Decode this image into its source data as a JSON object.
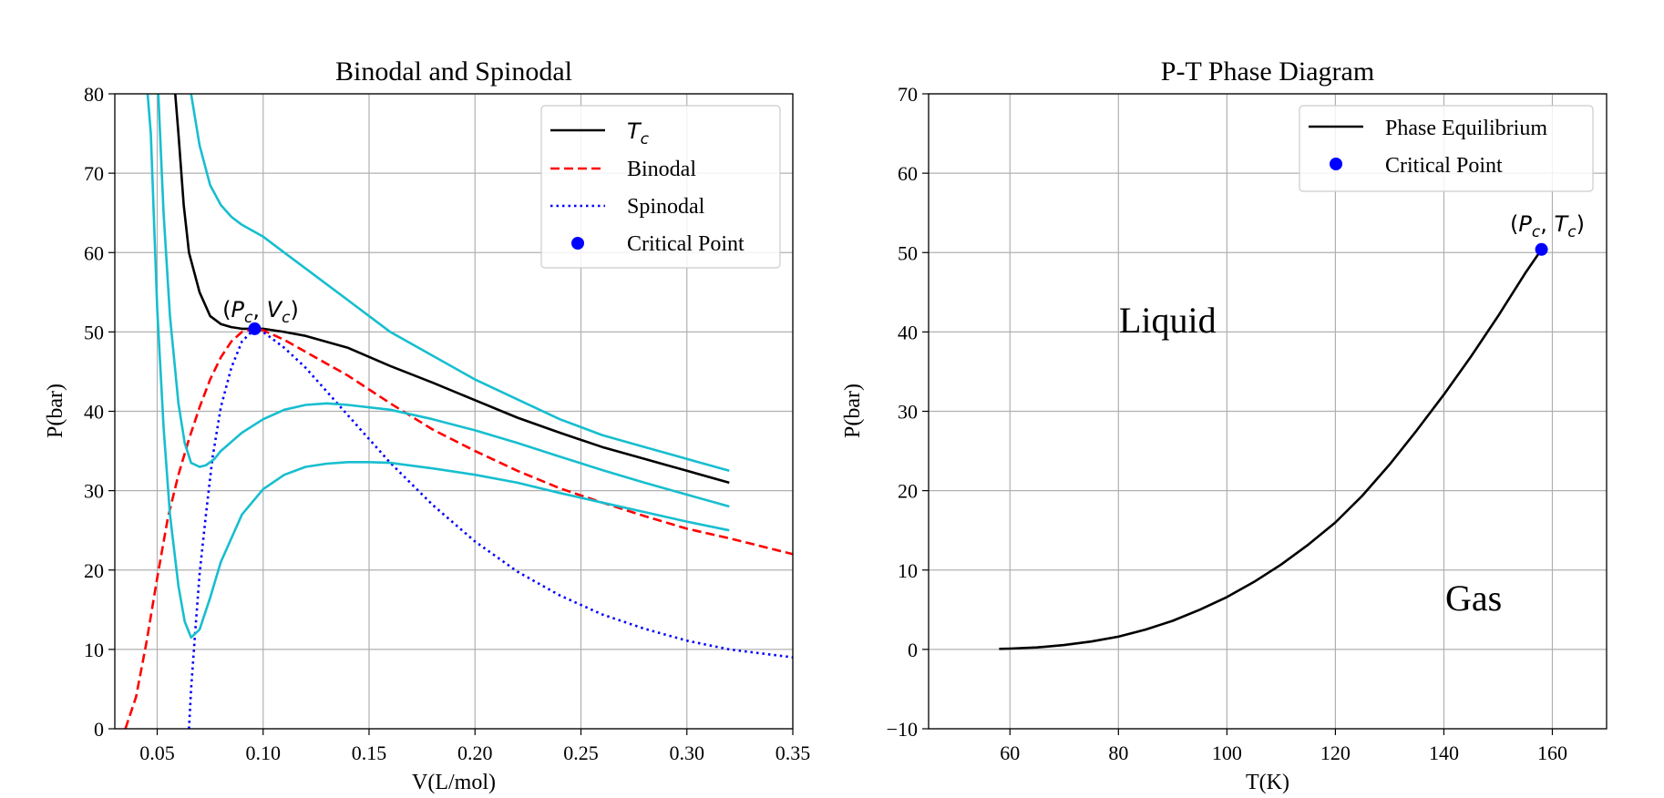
{
  "colors": {
    "tc": "#000000",
    "binodal": "#ff0000",
    "spinodal": "#0000ff",
    "isotherm": "#17becf",
    "critical": "#0000ff",
    "grid": "#b0b0b0"
  },
  "chart_data": [
    {
      "type": "line",
      "title": "Binodal and Spinodal",
      "xlabel": "V(L/mol)",
      "ylabel": "P(bar)",
      "xlim": [
        0.03,
        0.35
      ],
      "ylim": [
        0,
        80
      ],
      "xticks": [
        0.05,
        0.1,
        0.15,
        0.2,
        0.25,
        0.3,
        0.35
      ],
      "xtick_labels": [
        "0.05",
        "0.10",
        "0.15",
        "0.20",
        "0.25",
        "0.30",
        "0.35"
      ],
      "yticks": [
        0,
        10,
        20,
        30,
        40,
        50,
        60,
        70,
        80
      ],
      "ytick_labels": [
        "0",
        "10",
        "20",
        "30",
        "40",
        "50",
        "60",
        "70",
        "80"
      ],
      "grid": true,
      "legend_position": "upper right",
      "legend": [
        "Tc",
        "Binodal",
        "Spinodal",
        "Critical Point"
      ],
      "legend_math_subscript": "c",
      "series": [
        {
          "name": "Tc",
          "style": "solid",
          "color_key": "tc",
          "x": [
            0.0585,
            0.06,
            0.0625,
            0.065,
            0.07,
            0.075,
            0.08,
            0.085,
            0.09,
            0.095,
            0.1,
            0.11,
            0.12,
            0.14,
            0.16,
            0.18,
            0.2,
            0.22,
            0.24,
            0.26,
            0.28,
            0.3,
            0.32
          ],
          "y": [
            80,
            75,
            66,
            60,
            55,
            52,
            51,
            50.6,
            50.4,
            50.4,
            50.4,
            50,
            49.5,
            48,
            45.7,
            43.6,
            41.4,
            39.2,
            37.3,
            35.5,
            34,
            32.5,
            31
          ]
        },
        {
          "name": "Binodal",
          "style": "dashed",
          "color_key": "binodal",
          "x": [
            0.035,
            0.04,
            0.045,
            0.05,
            0.055,
            0.06,
            0.065,
            0.07,
            0.075,
            0.08,
            0.085,
            0.09,
            0.096,
            0.1,
            0.11,
            0.12,
            0.14,
            0.16,
            0.18,
            0.2,
            0.22,
            0.24,
            0.26,
            0.28,
            0.3,
            0.32,
            0.35
          ],
          "y": [
            0,
            4,
            11,
            19,
            26.5,
            32,
            36.5,
            40.5,
            44,
            46.8,
            48.8,
            50,
            50.4,
            50.2,
            49,
            47.5,
            44.5,
            41,
            37.7,
            35,
            32.5,
            30.3,
            28.5,
            26.8,
            25.2,
            24,
            22
          ]
        },
        {
          "name": "Spinodal",
          "style": "dotted",
          "color_key": "spinodal",
          "x": [
            0.065,
            0.066,
            0.068,
            0.07,
            0.073,
            0.076,
            0.08,
            0.085,
            0.09,
            0.096,
            0.1,
            0.11,
            0.12,
            0.14,
            0.16,
            0.18,
            0.2,
            0.22,
            0.24,
            0.26,
            0.28,
            0.3,
            0.32,
            0.35
          ],
          "y": [
            0,
            5,
            12.5,
            19.5,
            27,
            34,
            40.5,
            45.5,
            48.8,
            50.4,
            50,
            48,
            45.5,
            39.5,
            33.5,
            28.2,
            23.6,
            19.8,
            16.8,
            14.4,
            12.6,
            11.1,
            10,
            9
          ]
        },
        {
          "name": "",
          "style": "solid",
          "color_key": "isotherm",
          "x": [
            0.066,
            0.07,
            0.075,
            0.08,
            0.085,
            0.09,
            0.1,
            0.11,
            0.12,
            0.13,
            0.14,
            0.15,
            0.16,
            0.18,
            0.2,
            0.22,
            0.24,
            0.26,
            0.28,
            0.3,
            0.32
          ],
          "y": [
            80,
            73.5,
            68.5,
            66,
            64.5,
            63.5,
            62,
            60,
            58,
            56,
            54,
            52,
            50,
            47,
            44,
            41.5,
            39,
            37,
            35.5,
            34,
            32.5
          ]
        },
        {
          "name": "",
          "style": "solid",
          "color_key": "isotherm",
          "x": [
            0.0505,
            0.053,
            0.056,
            0.06,
            0.063,
            0.066,
            0.07,
            0.073,
            0.077,
            0.08,
            0.09,
            0.1,
            0.11,
            0.12,
            0.13,
            0.14,
            0.16,
            0.18,
            0.2,
            0.22,
            0.24,
            0.26,
            0.28,
            0.3,
            0.32
          ],
          "y": [
            80,
            65,
            52,
            41,
            36,
            33.5,
            33,
            33.2,
            34,
            35,
            37.3,
            39,
            40.2,
            40.8,
            41,
            40.8,
            40.2,
            39,
            37.6,
            36,
            34.3,
            32.6,
            31,
            29.5,
            28
          ]
        },
        {
          "name": "",
          "style": "solid",
          "color_key": "isotherm",
          "x": [
            0.0455,
            0.047,
            0.05,
            0.053,
            0.056,
            0.06,
            0.063,
            0.066,
            0.07,
            0.075,
            0.08,
            0.09,
            0.1,
            0.11,
            0.12,
            0.13,
            0.14,
            0.15,
            0.16,
            0.18,
            0.2,
            0.22,
            0.24,
            0.26,
            0.28,
            0.3,
            0.32
          ],
          "y": [
            80,
            75,
            53,
            38,
            27,
            18,
            13.5,
            11.5,
            12.5,
            16.5,
            21,
            27,
            30.2,
            32,
            33,
            33.4,
            33.6,
            33.6,
            33.5,
            32.8,
            32,
            31,
            29.7,
            28.5,
            27.3,
            26.1,
            25
          ]
        }
      ],
      "critical_point": {
        "x": 0.096,
        "y": 50.4,
        "label": "(P_c, V_c)"
      }
    },
    {
      "type": "line",
      "title": "P-T Phase Diagram",
      "xlabel": "T(K)",
      "ylabel": "P(bar)",
      "xlim": [
        45,
        170
      ],
      "ylim": [
        -10,
        70
      ],
      "xticks": [
        60,
        80,
        100,
        120,
        140,
        160
      ],
      "xtick_labels": [
        "60",
        "80",
        "100",
        "120",
        "140",
        "160"
      ],
      "yticks": [
        -10,
        0,
        10,
        20,
        30,
        40,
        50,
        60,
        70
      ],
      "ytick_labels": [
        "−10",
        "0",
        "10",
        "20",
        "30",
        "40",
        "50",
        "60",
        "70"
      ],
      "grid": true,
      "legend_position": "upper right",
      "legend": [
        "Phase Equilibrium",
        "Critical Point"
      ],
      "series": [
        {
          "name": "Phase Equilibrium",
          "style": "solid",
          "color_key": "tc",
          "x": [
            58,
            60,
            65,
            70,
            75,
            80,
            85,
            90,
            95,
            100,
            105,
            110,
            115,
            120,
            125,
            130,
            135,
            140,
            145,
            150,
            155,
            158
          ],
          "y": [
            0.07,
            0.1,
            0.25,
            0.55,
            1,
            1.6,
            2.5,
            3.6,
            5,
            6.6,
            8.5,
            10.7,
            13.2,
            16,
            19.4,
            23.3,
            27.6,
            32.1,
            36.9,
            42,
            47.4,
            50.4
          ]
        }
      ],
      "critical_point": {
        "x": 158,
        "y": 50.4,
        "label": "(P_c, T_c)"
      },
      "region_labels": [
        "Liquid",
        "Gas"
      ]
    }
  ]
}
